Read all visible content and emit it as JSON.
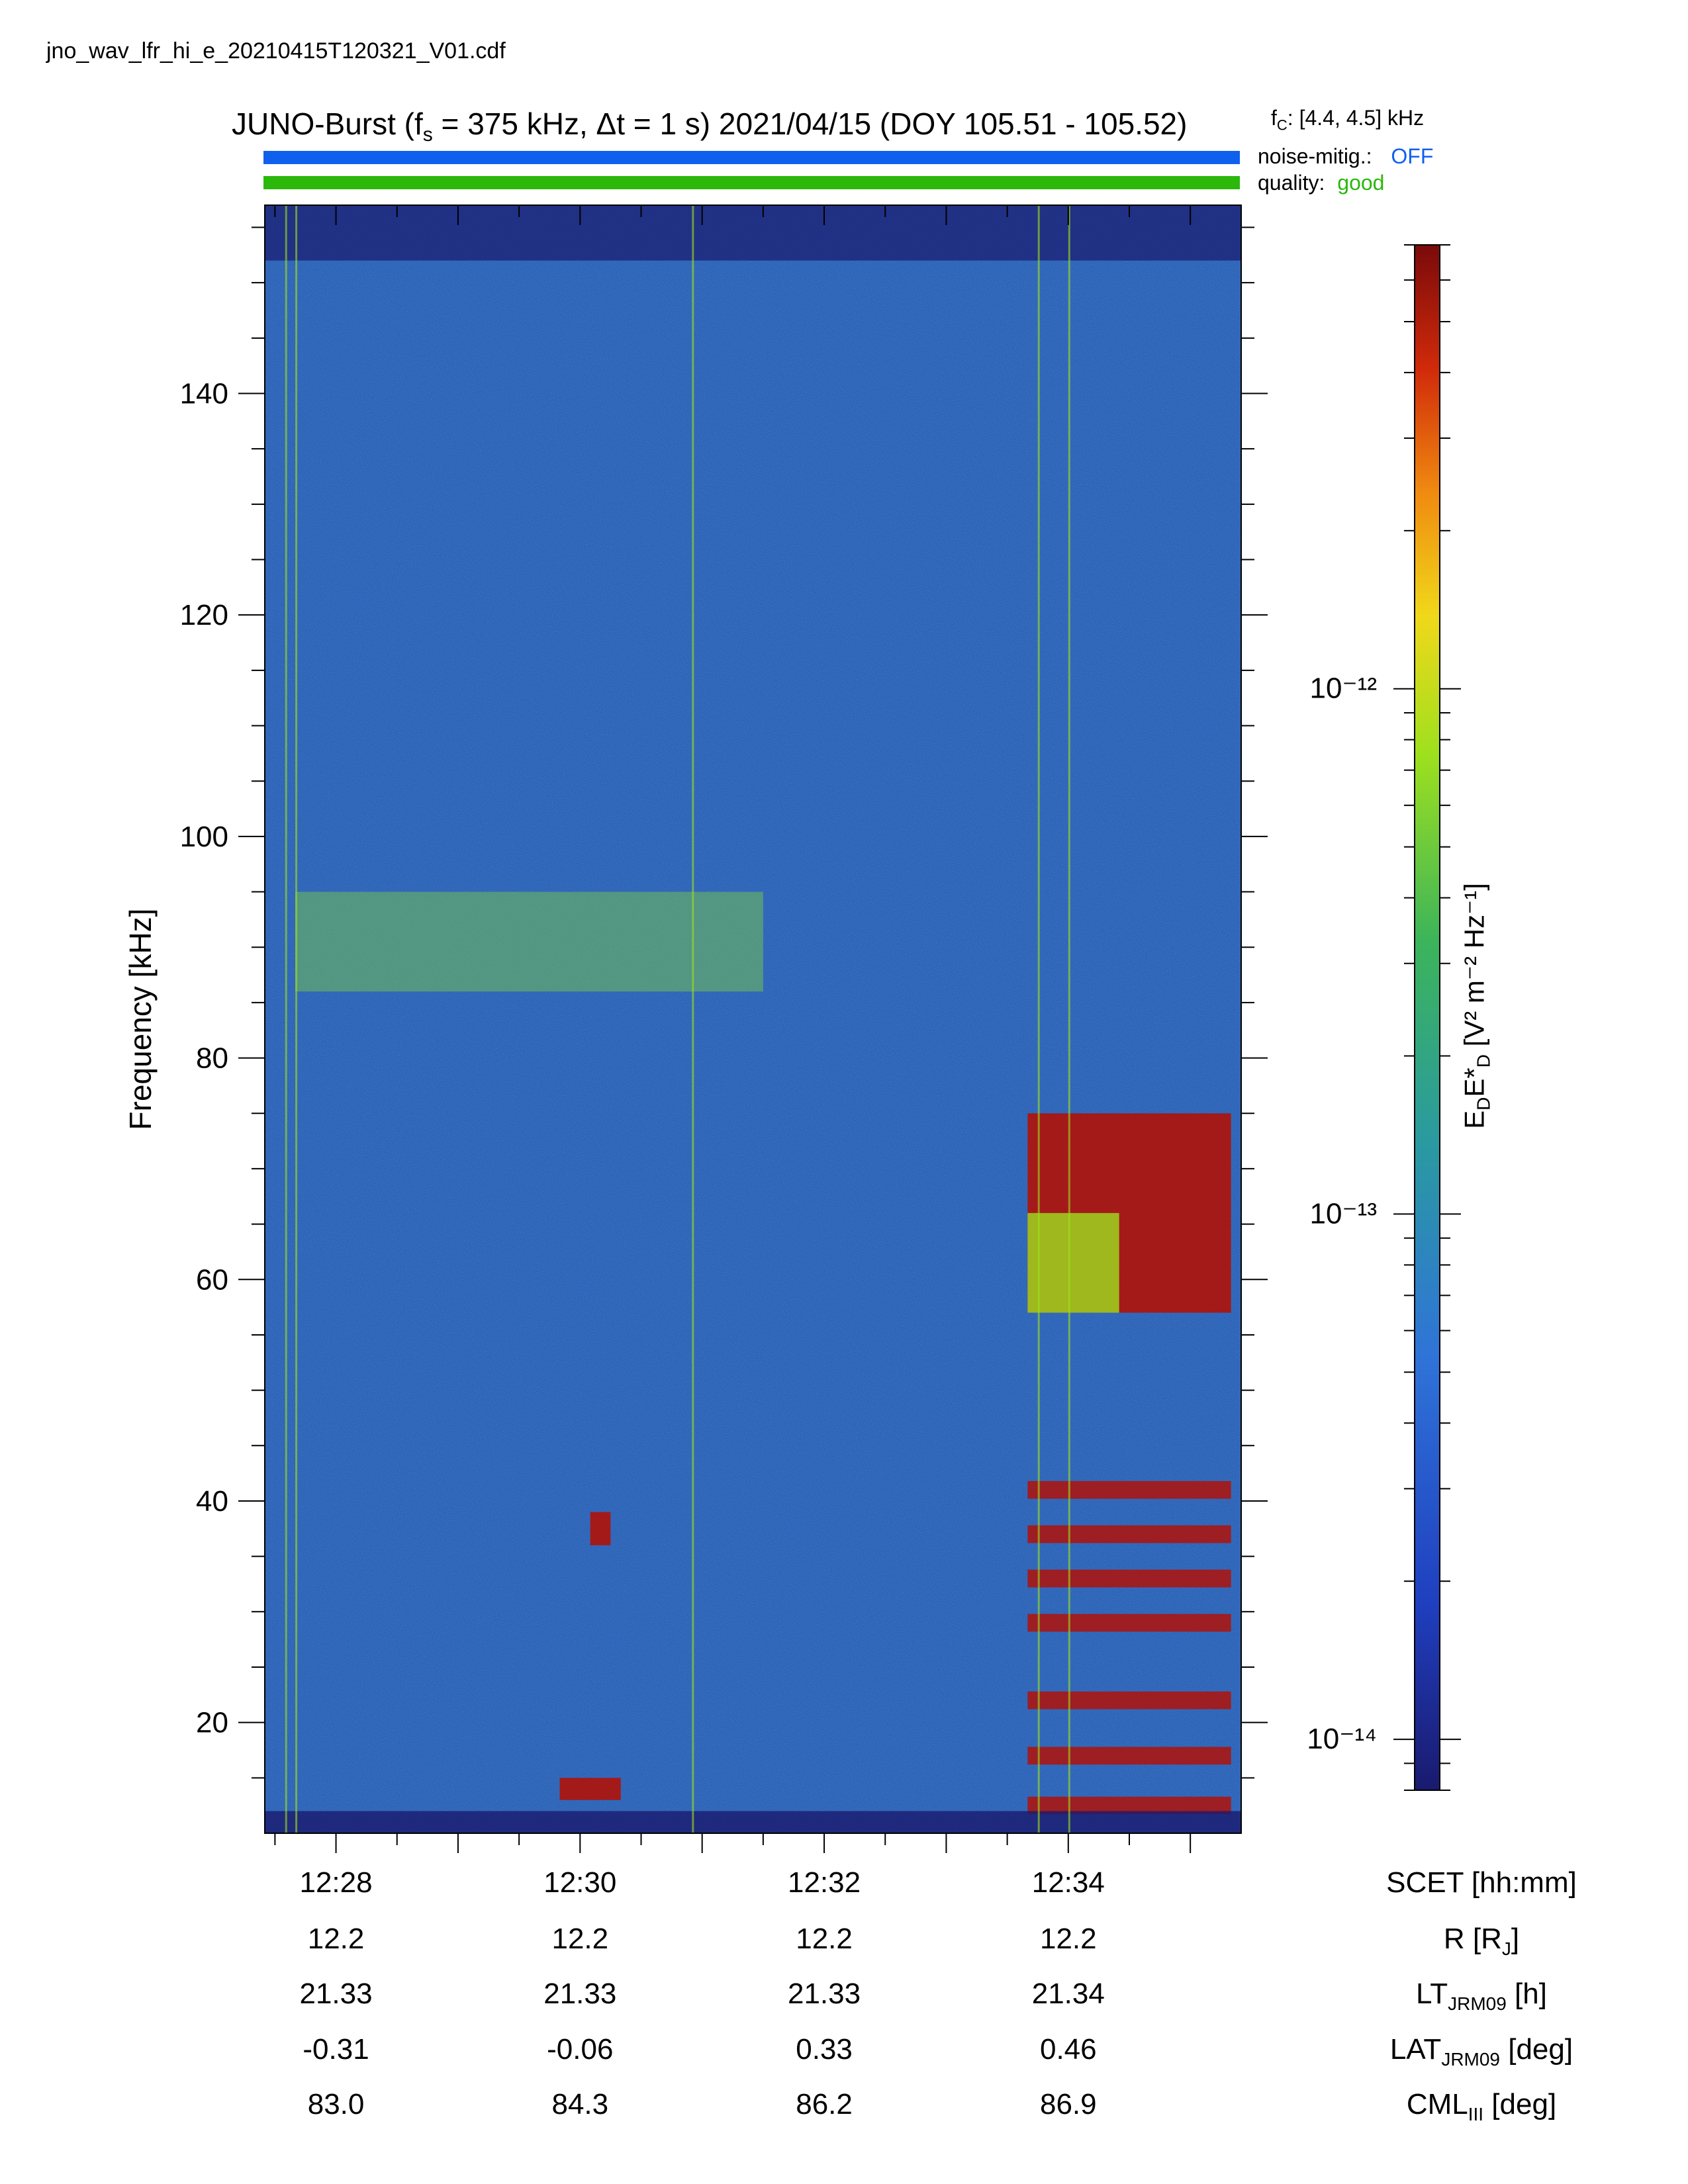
{
  "filename": "jno_wav_lfr_hi_e_20210415T120321_V01.cdf",
  "header": {
    "title_prefix": "JUNO-Burst (f",
    "title_sub": "s",
    "title_rest": " = 375 kHz, Δt = 1 s)  2021/04/15 (DOY 105.51 - 105.52)",
    "fc_label": "f",
    "fc_sub": "C",
    "fc_value": ": [4.4, 4.5] kHz",
    "noise_label": "noise-mitig.:",
    "noise_value": "OFF",
    "quality_label": "quality:",
    "quality_value": "good"
  },
  "colors": {
    "noise_bar": "#1060ee",
    "quality_bar": "#2bb80a",
    "noise_value": "#1060ee",
    "quality_value": "#2bb80a"
  },
  "chart_data": {
    "type": "heatmap",
    "ylabel": "Frequency [kHz]",
    "ylim": [
      10,
      157
    ],
    "yticks": [
      20,
      40,
      60,
      80,
      100,
      120,
      140
    ],
    "xticks": [
      "12:28",
      "12:30",
      "12:32",
      "12:34"
    ],
    "colorbar": {
      "label_main": "E",
      "label_sub1": "D",
      "label_mid": "E*",
      "label_sub2": "D",
      "label_units": " [V² m⁻² Hz⁻¹]",
      "scale": "log",
      "range": [
        8e-15,
        7e-12
      ],
      "ticks": [
        "10⁻¹²",
        "10⁻¹³",
        "10⁻¹⁴"
      ],
      "colormap": [
        "#1a1a6e",
        "#1f3fbf",
        "#2f73d8",
        "#2a9aa0",
        "#3cb45a",
        "#9ee01e",
        "#f0d81a",
        "#f08a10",
        "#d02a0a",
        "#7a0a0a"
      ]
    },
    "features": [
      {
        "name": "band",
        "f_khz": [
          86,
          95
        ],
        "time": [
          "12:27:40",
          "12:31:30"
        ],
        "level": "medium"
      },
      {
        "name": "emission",
        "f_khz": [
          57,
          75
        ],
        "time": [
          "12:33:40",
          "12:35:20"
        ],
        "level": "high"
      },
      {
        "name": "emission",
        "f_khz": [
          36,
          39
        ],
        "time": [
          "12:30:05",
          "12:30:15"
        ],
        "level": "high"
      },
      {
        "name": "emission",
        "f_khz": [
          13,
          15
        ],
        "time": [
          "12:29:50",
          "12:30:20"
        ],
        "level": "high"
      },
      {
        "name": "harmonics",
        "f_khz": [
          12,
          42
        ],
        "time": [
          "12:33:40",
          "12:35:20"
        ],
        "level": "high"
      }
    ]
  },
  "ephemeris": {
    "rows": [
      {
        "label": "SCET [hh:mm]",
        "values": [
          "12:28",
          "12:30",
          "12:32",
          "12:34"
        ]
      },
      {
        "label_main": "R [R",
        "label_sub": "J",
        "label_tail": "]",
        "values": [
          "12.2",
          "12.2",
          "12.2",
          "12.2"
        ]
      },
      {
        "label_main": "LT",
        "label_sub": "JRM09",
        "label_tail": " [h]",
        "values": [
          "21.33",
          "21.33",
          "21.33",
          "21.34"
        ]
      },
      {
        "label_main": "LAT",
        "label_sub": "JRM09",
        "label_tail": " [deg]",
        "values": [
          "-0.31",
          "-0.06",
          "0.33",
          "0.46"
        ]
      },
      {
        "label_main": "CML",
        "label_sub": "III",
        "label_tail": " [deg]",
        "values": [
          "83.0",
          "84.3",
          "86.2",
          "86.9"
        ]
      }
    ]
  }
}
